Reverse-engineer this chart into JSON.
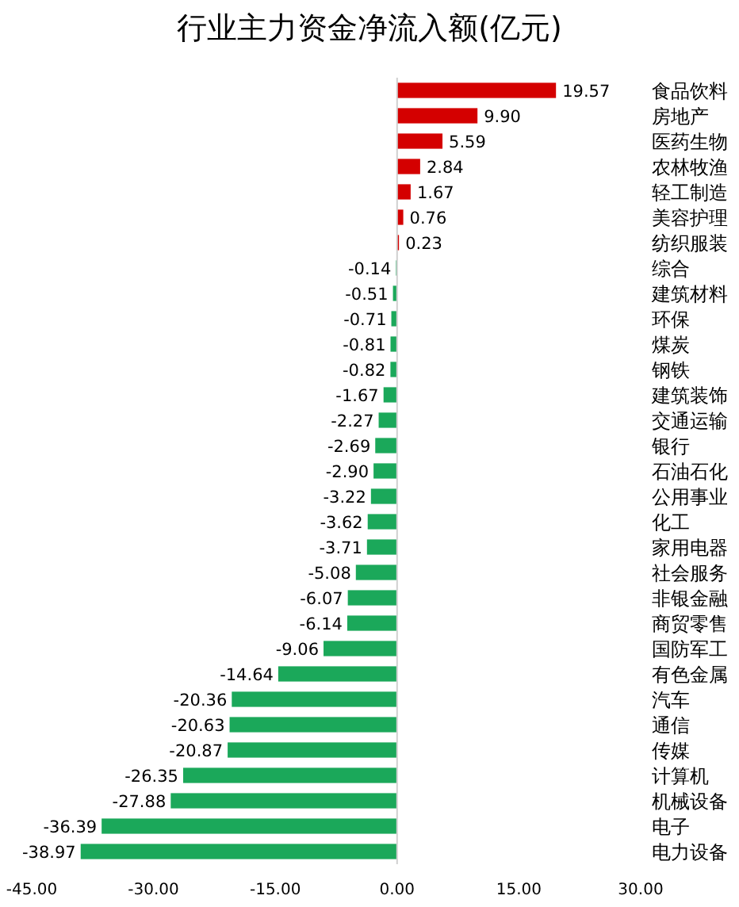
{
  "chart_data": {
    "type": "bar",
    "title": "行业主力资金净流入额(亿元)",
    "categories": [
      "食品饮料",
      "房地产",
      "医药生物",
      "农林牧渔",
      "轻工制造",
      "美容护理",
      "纺织服装",
      "综合",
      "建筑材料",
      "环保",
      "煤炭",
      "钢铁",
      "建筑装饰",
      "交通运输",
      "银行",
      "石油石化",
      "公用事业",
      "化工",
      "家用电器",
      "社会服务",
      "非银金融",
      "商贸零售",
      "国防军工",
      "有色金属",
      "汽车",
      "通信",
      "传媒",
      "计算机",
      "机械设备",
      "电子",
      "电力设备"
    ],
    "values": [
      19.57,
      9.9,
      5.59,
      2.84,
      1.67,
      0.76,
      0.23,
      -0.14,
      -0.51,
      -0.71,
      -0.81,
      -0.82,
      -1.67,
      -2.27,
      -2.69,
      -2.9,
      -3.22,
      -3.62,
      -3.71,
      -5.08,
      -6.07,
      -6.14,
      -9.06,
      -14.64,
      -20.36,
      -20.63,
      -20.87,
      -26.35,
      -27.88,
      -36.39,
      -38.97
    ],
    "value_labels": [
      "19.57",
      "9.90",
      "5.59",
      "2.84",
      "1.67",
      "0.76",
      "0.23",
      "-0.14",
      "-0.51",
      "-0.71",
      "-0.81",
      "-0.82",
      "-1.67",
      "-2.27",
      "-2.69",
      "-2.90",
      "-3.22",
      "-3.62",
      "-3.71",
      "-5.08",
      "-6.07",
      "-6.14",
      "-9.06",
      "-14.64",
      "-20.36",
      "-20.63",
      "-20.87",
      "-26.35",
      "-27.88",
      "-36.39",
      "-38.97"
    ],
    "colors": [
      "#d40000",
      "#d40000",
      "#d40000",
      "#d40000",
      "#d40000",
      "#d40000",
      "#d40000",
      "#1ba85a",
      "#1ba85a",
      "#1ba85a",
      "#1ba85a",
      "#1ba85a",
      "#1ba85a",
      "#1ba85a",
      "#1ba85a",
      "#1ba85a",
      "#1ba85a",
      "#1ba85a",
      "#1ba85a",
      "#1ba85a",
      "#1ba85a",
      "#1ba85a",
      "#1ba85a",
      "#1ba85a",
      "#1ba85a",
      "#1ba85a",
      "#1ba85a",
      "#1ba85a",
      "#1ba85a",
      "#1ba85a",
      "#1ba85a"
    ],
    "xlim": [
      -45,
      30
    ],
    "xticks": [
      {
        "value": -45,
        "label": "-45.00"
      },
      {
        "value": -30,
        "label": "-30.00"
      },
      {
        "value": -15,
        "label": "-15.00"
      },
      {
        "value": 0,
        "label": "0.00"
      },
      {
        "value": 15,
        "label": "15.00"
      },
      {
        "value": 30,
        "label": "30.00"
      }
    ],
    "orientation": "horizontal"
  }
}
